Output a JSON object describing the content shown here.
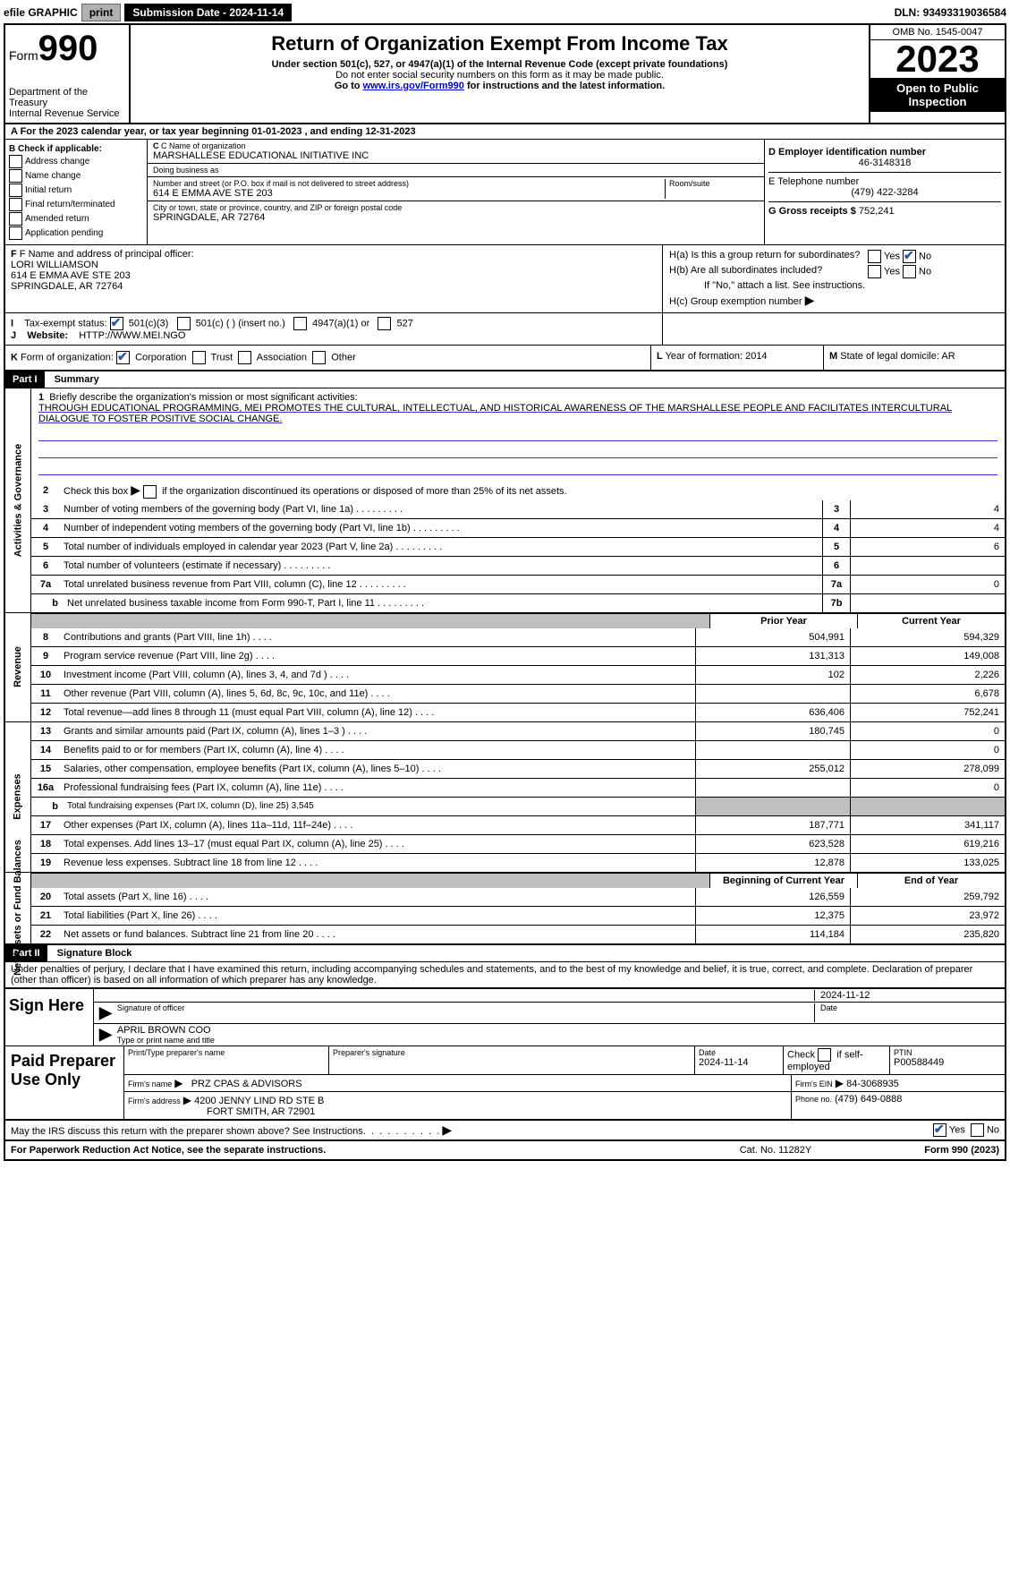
{
  "topbar": {
    "efile": "efile GRAPHIC",
    "print": "print",
    "submission_label": "Submission Date - ",
    "submission_date": "2024-11-14",
    "dln_label": "DLN: ",
    "dln": "93493319036584"
  },
  "header": {
    "form_word": "Form",
    "form_num": "990",
    "dept": "Department of the Treasury",
    "irs": "Internal Revenue Service",
    "title": "Return of Organization Exempt From Income Tax",
    "sub": "Under section 501(c), 527, or 4947(a)(1) of the Internal Revenue Code (except private foundations)",
    "note1": "Do not enter social security numbers on this form as it may be made public.",
    "note2_pre": "Go to ",
    "note2_link": "www.irs.gov/Form990",
    "note2_post": " for instructions and the latest information.",
    "omb": "OMB No. 1545-0047",
    "year": "2023",
    "open": "Open to Public Inspection"
  },
  "row_a": {
    "text": "A For the 2023 calendar year, or tax year beginning 01-01-2023   , and ending 12-31-2023"
  },
  "section_b": {
    "header": "B Check if applicable:",
    "items": [
      "Address change",
      "Name change",
      "Initial return",
      "Final return/terminated",
      "Amended return",
      "Application pending"
    ]
  },
  "section_c": {
    "name_label": "C Name of organization",
    "name": "MARSHALLESE EDUCATIONAL INITIATIVE INC",
    "dba_label": "Doing business as",
    "dba": "",
    "street_label": "Number and street (or P.O. box if mail is not delivered to street address)",
    "street": "614 E EMMA AVE STE 203",
    "room_label": "Room/suite",
    "city_label": "City or town, state or province, country, and ZIP or foreign postal code",
    "city": "SPRINGDALE, AR  72764"
  },
  "section_d": {
    "ein_label": "D Employer identification number",
    "ein": "46-3148318",
    "phone_label": "E Telephone number",
    "phone": "(479) 422-3284",
    "gross_label": "G Gross receipts $ ",
    "gross": "752,241"
  },
  "section_f": {
    "label": "F Name and address of principal officer:",
    "name": "LORI WILLIAMSON",
    "street": "614 E EMMA AVE STE 203",
    "city": "SPRINGDALE, AR  72764"
  },
  "section_h": {
    "ha": "H(a)  Is this a group return for subordinates?",
    "hb": "H(b)  Are all subordinates included?",
    "hb_note": "If \"No,\" attach a list. See instructions.",
    "hc": "H(c)  Group exemption number"
  },
  "row_i": {
    "label": "I    Tax-exempt status:",
    "opts": [
      "501(c)(3)",
      "501(c) (  ) (insert no.)",
      "4947(a)(1) or",
      "527"
    ]
  },
  "row_j": {
    "label": "J    Website:",
    "val": "HTTP://WWW.MEI.NGO"
  },
  "row_k": {
    "k_label": "K Form of organization:",
    "opts": [
      "Corporation",
      "Trust",
      "Association",
      "Other"
    ],
    "l_label": "L Year of formation: ",
    "l_val": "2014",
    "m_label": "M State of legal domicile: ",
    "m_val": "AR"
  },
  "part1": {
    "part": "Part I",
    "title": "Summary",
    "side1": "Activities & Governance",
    "side2": "Revenue",
    "side3": "Expenses",
    "side4": "Net Assets or Fund Balances",
    "line1_label": "Briefly describe the organization's mission or most significant activities:",
    "mission": "THROUGH EDUCATIONAL PROGRAMMING, MEI PROMOTES THE CULTURAL, INTELLECTUAL, AND HISTORICAL AWARENESS OF THE MARSHALLESE PEOPLE AND FACILITATES INTERCULTURAL DIALOGUE TO FOSTER POSITIVE SOCIAL CHANGE.",
    "line2": "Check this box      if the organization discontinued its operations or disposed of more than 25% of its net assets.",
    "lines_gov": [
      {
        "n": "3",
        "t": "Number of voting members of the governing body (Part VI, line 1a)",
        "box": "3",
        "v": "4"
      },
      {
        "n": "4",
        "t": "Number of independent voting members of the governing body (Part VI, line 1b)",
        "box": "4",
        "v": "4"
      },
      {
        "n": "5",
        "t": "Total number of individuals employed in calendar year 2023 (Part V, line 2a)",
        "box": "5",
        "v": "6"
      },
      {
        "n": "6",
        "t": "Total number of volunteers (estimate if necessary)",
        "box": "6",
        "v": ""
      },
      {
        "n": "7a",
        "t": "Total unrelated business revenue from Part VIII, column (C), line 12",
        "box": "7a",
        "v": "0"
      },
      {
        "n": "",
        "nsub": "b",
        "t": "Net unrelated business taxable income from Form 990-T, Part I, line 11",
        "box": "7b",
        "v": ""
      }
    ],
    "col_headers": {
      "prior": "Prior Year",
      "current": "Current Year"
    },
    "revenue": [
      {
        "n": "8",
        "t": "Contributions and grants (Part VIII, line 1h)",
        "p": "504,991",
        "c": "594,329"
      },
      {
        "n": "9",
        "t": "Program service revenue (Part VIII, line 2g)",
        "p": "131,313",
        "c": "149,008"
      },
      {
        "n": "10",
        "t": "Investment income (Part VIII, column (A), lines 3, 4, and 7d )",
        "p": "102",
        "c": "2,226"
      },
      {
        "n": "11",
        "t": "Other revenue (Part VIII, column (A), lines 5, 6d, 8c, 9c, 10c, and 11e)",
        "p": "",
        "c": "6,678"
      },
      {
        "n": "12",
        "t": "Total revenue—add lines 8 through 11 (must equal Part VIII, column (A), line 12)",
        "p": "636,406",
        "c": "752,241"
      }
    ],
    "expenses": [
      {
        "n": "13",
        "t": "Grants and similar amounts paid (Part IX, column (A), lines 1–3 )",
        "p": "180,745",
        "c": "0"
      },
      {
        "n": "14",
        "t": "Benefits paid to or for members (Part IX, column (A), line 4)",
        "p": "",
        "c": "0"
      },
      {
        "n": "15",
        "t": "Salaries, other compensation, employee benefits (Part IX, column (A), lines 5–10)",
        "p": "255,012",
        "c": "278,099"
      },
      {
        "n": "16a",
        "t": "Professional fundraising fees (Part IX, column (A), line 11e)",
        "p": "",
        "c": "0"
      },
      {
        "n": "b",
        "sub": true,
        "t": "Total fundraising expenses (Part IX, column (D), line 25) 3,545",
        "grey": true
      },
      {
        "n": "17",
        "t": "Other expenses (Part IX, column (A), lines 11a–11d, 11f–24e)",
        "p": "187,771",
        "c": "341,117"
      },
      {
        "n": "18",
        "t": "Total expenses. Add lines 13–17 (must equal Part IX, column (A), line 25)",
        "p": "623,528",
        "c": "619,216"
      },
      {
        "n": "19",
        "t": "Revenue less expenses. Subtract line 18 from line 12",
        "p": "12,878",
        "c": "133,025"
      }
    ],
    "col_headers2": {
      "begin": "Beginning of Current Year",
      "end": "End of Year"
    },
    "netassets": [
      {
        "n": "20",
        "t": "Total assets (Part X, line 16)",
        "p": "126,559",
        "c": "259,792"
      },
      {
        "n": "21",
        "t": "Total liabilities (Part X, line 26)",
        "p": "12,375",
        "c": "23,972"
      },
      {
        "n": "22",
        "t": "Net assets or fund balances. Subtract line 21 from line 20",
        "p": "114,184",
        "c": "235,820"
      }
    ]
  },
  "part2": {
    "part": "Part II",
    "title": "Signature Block",
    "decl": "Under penalties of perjury, I declare that I have examined this return, including accompanying schedules and statements, and to the best of my knowledge and belief, it is true, correct, and complete. Declaration of preparer (other than officer) is based on all information of which preparer has any knowledge.",
    "sign_here": "Sign Here",
    "sig_of_officer": "Signature of officer",
    "sig_date": "2024-11-12",
    "date_label": "Date",
    "officer_name": "APRIL BROWN  COO",
    "type_name": "Type or print name and title",
    "paid_label": "Paid Preparer Use Only",
    "prep_name_label": "Print/Type preparer's name",
    "prep_name": "",
    "prep_sig_label": "Preparer's signature",
    "prep_date_label": "Date",
    "prep_date": "2024-11-14",
    "check_if": "Check       if self-employed",
    "ptin_label": "PTIN",
    "ptin": "P00588449",
    "firm_name_label": "Firm's name",
    "firm_name": "PRZ CPAS & ADVISORS",
    "firm_ein_label": "Firm's EIN",
    "firm_ein": "84-3068935",
    "firm_addr_label": "Firm's address",
    "firm_addr1": "4200 JENNY LIND RD STE B",
    "firm_addr2": "FORT SMITH, AR  72901",
    "phone_label": "Phone no.",
    "phone": "(479) 649-0888",
    "discuss": "May the IRS discuss this return with the preparer shown above? See Instructions.",
    "paperwork": "For Paperwork Reduction Act Notice, see the separate instructions.",
    "cat": "Cat. No. 11282Y",
    "form_foot": "Form 990 (2023)"
  }
}
